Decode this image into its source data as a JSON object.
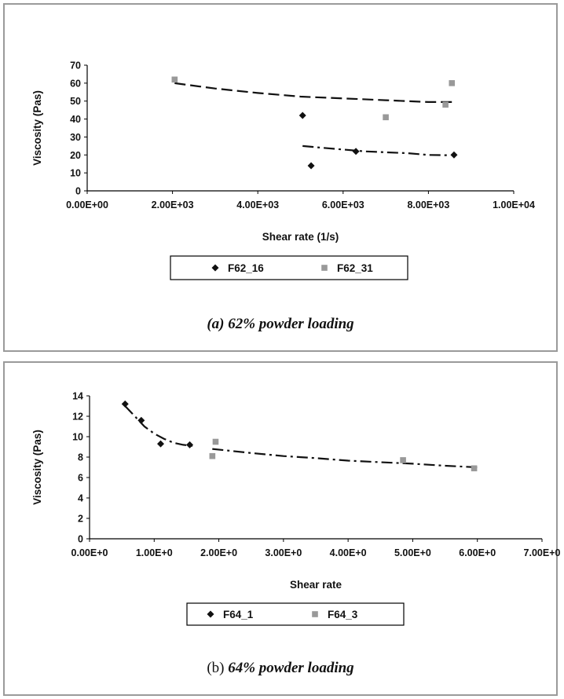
{
  "chart_data": [
    {
      "type": "scatter",
      "title": "",
      "xlabel": "Shear rate (1/s)",
      "ylabel": "Viscosity (Pas)",
      "xlim": [
        0,
        10000
      ],
      "ylim": [
        0,
        70
      ],
      "x_ticks": [
        "0.00E+00",
        "2.00E+03",
        "4.00E+03",
        "6.00E+03",
        "8.00E+03",
        "1.00E+04"
      ],
      "y_ticks": [
        "0",
        "10",
        "20",
        "30",
        "40",
        "50",
        "60",
        "70"
      ],
      "legend_position": "bottom",
      "series": [
        {
          "name": "F62_16",
          "marker": "diamond",
          "color": "#111111",
          "points": [
            [
              5050,
              42
            ],
            [
              5250,
              14
            ],
            [
              6300,
              22
            ],
            [
              8600,
              20
            ]
          ],
          "trendline": {
            "x": [
              5050,
              5500,
              6000,
              6500,
              7000,
              7500,
              8000,
              8500
            ],
            "y": [
              25,
              24,
              23,
              22,
              21.5,
              21,
              20,
              19.8
            ],
            "style": "dash-dot"
          }
        },
        {
          "name": "F62_31",
          "marker": "square",
          "color": "#999999",
          "points": [
            [
              2050,
              62
            ],
            [
              7000,
              41
            ],
            [
              8400,
              48
            ],
            [
              8550,
              60
            ]
          ],
          "trendline": {
            "x": [
              2050,
              3000,
              4000,
              5000,
              6000,
              7000,
              8000,
              8600
            ],
            "y": [
              60,
              57,
              54.5,
              52.5,
              51.5,
              50.5,
              49.5,
              49.5
            ],
            "style": "dash"
          }
        }
      ]
    },
    {
      "type": "scatter",
      "title": "",
      "xlabel": "Shear rate",
      "ylabel": "Viscosity (Pas)",
      "xlim": [
        0,
        7
      ],
      "ylim": [
        0,
        14
      ],
      "x_ticks": [
        "0.00E+0",
        "1.00E+0",
        "2.00E+0",
        "3.00E+0",
        "4.00E+0",
        "5.00E+0",
        "6.00E+0",
        "7.00E+0"
      ],
      "y_ticks": [
        "0",
        "2",
        "4",
        "6",
        "8",
        "10",
        "12",
        "14"
      ],
      "legend_position": "bottom",
      "series": [
        {
          "name": "F64_1",
          "marker": "diamond",
          "color": "#111111",
          "points": [
            [
              0.55,
              13.2
            ],
            [
              0.8,
              11.6
            ],
            [
              1.1,
              9.3
            ],
            [
              1.55,
              9.2
            ]
          ],
          "trendline": {
            "x": [
              0.55,
              0.7,
              0.85,
              1.0,
              1.15,
              1.3,
              1.45,
              1.6
            ],
            "y": [
              13.0,
              12.0,
              11.0,
              10.3,
              9.8,
              9.4,
              9.2,
              9.1
            ],
            "style": "dash-dot"
          }
        },
        {
          "name": "F64_3",
          "marker": "square",
          "color": "#999999",
          "points": [
            [
              1.9,
              8.1
            ],
            [
              1.95,
              9.5
            ],
            [
              4.85,
              7.7
            ],
            [
              5.95,
              6.9
            ]
          ],
          "trendline": {
            "x": [
              1.9,
              2.5,
              3.0,
              3.5,
              4.0,
              4.5,
              5.0,
              5.5,
              6.0
            ],
            "y": [
              8.8,
              8.4,
              8.1,
              7.9,
              7.65,
              7.5,
              7.35,
              7.15,
              7.0
            ],
            "style": "dash-dot"
          }
        }
      ]
    }
  ],
  "captions": {
    "a": "(a) 62% powder loading",
    "b_prefix": "(b) ",
    "b_emph": "64% powder loading"
  }
}
